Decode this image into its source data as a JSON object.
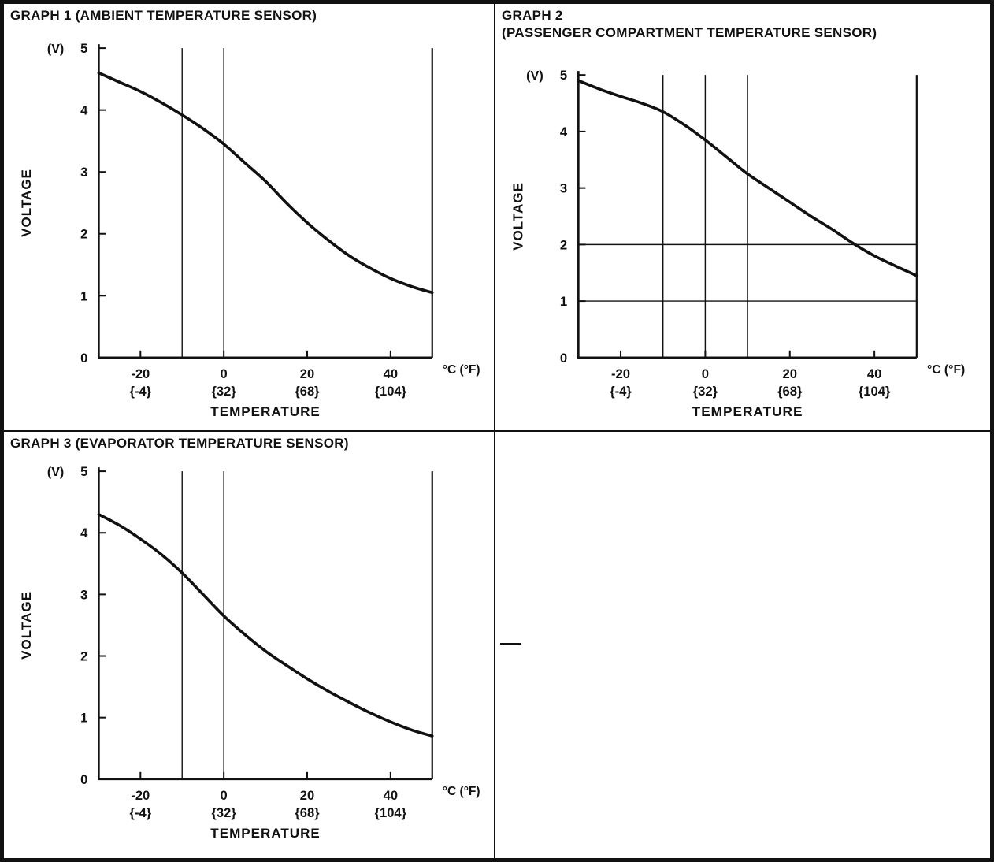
{
  "page": {
    "background": "#ffffff",
    "ink_color": "#111111"
  },
  "chart_data": [
    {
      "type": "line",
      "title": "GRAPH 1 (AMBIENT TEMPERATURE SENSOR)",
      "title_lines": [
        "GRAPH 1 (AMBIENT TEMPERATURE SENSOR)"
      ],
      "ylabel": "VOLTAGE",
      "y_axis_unit": "(V)",
      "xlabel": "TEMPERATURE",
      "x_axis_unit": "°C (°F)",
      "xlim": [
        -30,
        50
      ],
      "ylim": [
        0,
        5
      ],
      "y_ticks": [
        0,
        1,
        2,
        3,
        4,
        5
      ],
      "x_ticks": [
        {
          "value": -20,
          "celsius": "-20",
          "fahrenheit": "{-4}"
        },
        {
          "value": 0,
          "celsius": "0",
          "fahrenheit": "{32}"
        },
        {
          "value": 20,
          "celsius": "20",
          "fahrenheit": "{68}"
        },
        {
          "value": 40,
          "celsius": "40",
          "fahrenheit": "{104}"
        }
      ],
      "vertical_gridlines_c": [
        -10,
        0
      ],
      "horizontal_gridlines_v": [],
      "right_border_c": 50,
      "curve_points_c_v": [
        [
          -30,
          4.6
        ],
        [
          -25,
          4.45
        ],
        [
          -20,
          4.3
        ],
        [
          -15,
          4.12
        ],
        [
          -10,
          3.92
        ],
        [
          -5,
          3.7
        ],
        [
          0,
          3.45
        ],
        [
          5,
          3.15
        ],
        [
          10,
          2.85
        ],
        [
          15,
          2.5
        ],
        [
          20,
          2.18
        ],
        [
          25,
          1.9
        ],
        [
          30,
          1.65
        ],
        [
          35,
          1.45
        ],
        [
          40,
          1.28
        ],
        [
          45,
          1.15
        ],
        [
          50,
          1.05
        ]
      ]
    },
    {
      "type": "line",
      "title": "GRAPH 2 (PASSENGER COMPARTMENT TEMPERATURE SENSOR)",
      "title_lines": [
        "GRAPH 2",
        "(PASSENGER COMPARTMENT TEMPERATURE SENSOR)"
      ],
      "ylabel": "VOLTAGE",
      "y_axis_unit": "(V)",
      "xlabel": "TEMPERATURE",
      "x_axis_unit": "°C (°F)",
      "xlim": [
        -30,
        50
      ],
      "ylim": [
        0,
        5
      ],
      "y_ticks": [
        0,
        1,
        2,
        3,
        4,
        5
      ],
      "x_ticks": [
        {
          "value": -20,
          "celsius": "-20",
          "fahrenheit": "{-4}"
        },
        {
          "value": 0,
          "celsius": "0",
          "fahrenheit": "{32}"
        },
        {
          "value": 20,
          "celsius": "20",
          "fahrenheit": "{68}"
        },
        {
          "value": 40,
          "celsius": "40",
          "fahrenheit": "{104}"
        }
      ],
      "vertical_gridlines_c": [
        -10,
        0,
        10
      ],
      "horizontal_gridlines_v": [
        1,
        2
      ],
      "right_border_c": 50,
      "curve_points_c_v": [
        [
          -30,
          4.9
        ],
        [
          -25,
          4.75
        ],
        [
          -20,
          4.62
        ],
        [
          -15,
          4.5
        ],
        [
          -10,
          4.35
        ],
        [
          -5,
          4.12
        ],
        [
          0,
          3.85
        ],
        [
          5,
          3.55
        ],
        [
          10,
          3.25
        ],
        [
          15,
          3.0
        ],
        [
          20,
          2.75
        ],
        [
          25,
          2.5
        ],
        [
          30,
          2.27
        ],
        [
          35,
          2.02
        ],
        [
          40,
          1.8
        ],
        [
          45,
          1.62
        ],
        [
          50,
          1.45
        ]
      ]
    },
    {
      "type": "line",
      "title": "GRAPH 3 (EVAPORATOR TEMPERATURE SENSOR)",
      "title_lines": [
        "GRAPH 3 (EVAPORATOR TEMPERATURE SENSOR)"
      ],
      "ylabel": "VOLTAGE",
      "y_axis_unit": "(V)",
      "xlabel": "TEMPERATURE",
      "x_axis_unit": "°C (°F)",
      "xlim": [
        -30,
        50
      ],
      "ylim": [
        0,
        5
      ],
      "y_ticks": [
        0,
        1,
        2,
        3,
        4,
        5
      ],
      "x_ticks": [
        {
          "value": -20,
          "celsius": "-20",
          "fahrenheit": "{-4}"
        },
        {
          "value": 0,
          "celsius": "0",
          "fahrenheit": "{32}"
        },
        {
          "value": 20,
          "celsius": "20",
          "fahrenheit": "{68}"
        },
        {
          "value": 40,
          "celsius": "40",
          "fahrenheit": "{104}"
        }
      ],
      "vertical_gridlines_c": [
        -10,
        0
      ],
      "horizontal_gridlines_v": [],
      "right_border_c": 50,
      "curve_points_c_v": [
        [
          -30,
          4.3
        ],
        [
          -25,
          4.12
        ],
        [
          -20,
          3.9
        ],
        [
          -15,
          3.65
        ],
        [
          -10,
          3.35
        ],
        [
          -5,
          3.0
        ],
        [
          0,
          2.65
        ],
        [
          5,
          2.35
        ],
        [
          10,
          2.08
        ],
        [
          15,
          1.85
        ],
        [
          20,
          1.63
        ],
        [
          25,
          1.43
        ],
        [
          30,
          1.25
        ],
        [
          35,
          1.08
        ],
        [
          40,
          0.93
        ],
        [
          45,
          0.8
        ],
        [
          50,
          0.7
        ]
      ]
    }
  ]
}
